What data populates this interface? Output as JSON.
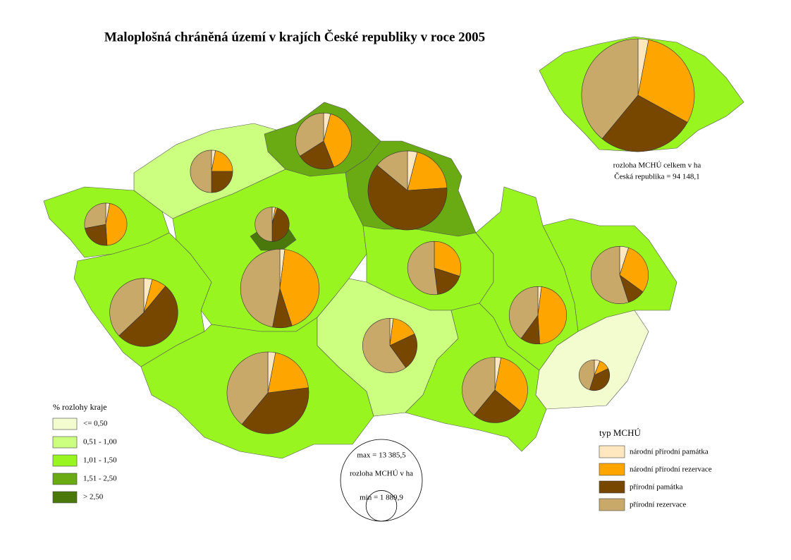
{
  "title": "Maloplošná chráněná území v krajích České republiky v roce 2005",
  "choropleth_legend": {
    "title": "% rozlohy kraje",
    "classes": [
      {
        "label": "<=  0,50",
        "color": "#f2fccf"
      },
      {
        "label": "0,51 - 1,00",
        "color": "#ccff80"
      },
      {
        "label": "1,01 - 1,50",
        "color": "#99f520"
      },
      {
        "label": "1,51 - 2,50",
        "color": "#6aaa12"
      },
      {
        "label": "> 2,50",
        "color": "#4a780a"
      }
    ]
  },
  "type_legend": {
    "title": "typ MCHÚ",
    "types": [
      {
        "name": "národní přírodní památka",
        "color": "#ffe8c0"
      },
      {
        "name": "národní přírodní rezervace",
        "color": "#ffa500"
      },
      {
        "name": "přírodní památka",
        "color": "#774700"
      },
      {
        "name": "přírodní rezervace",
        "color": "#c8a96a"
      }
    ]
  },
  "size_legend": {
    "label": "rozloha MCHÚ v ha",
    "max": {
      "value": 13385.5,
      "label": "max = 13 385,5"
    },
    "min": {
      "value": 1889.9,
      "label": "min = 1 889,9"
    }
  },
  "cr_pie": {
    "label": "rozloha MCHÚ celkem v ha",
    "total": {
      "value": 94148.1,
      "label": "Česká republika = 94 148,1"
    },
    "values": [
      2824.4,
      28244.4,
      26361.5,
      36717.8
    ]
  },
  "region_pies": [
    {
      "values": [
        108,
        1656,
        828,
        1008
      ]
    },
    {
      "values": [
        108,
        792,
        900,
        1800
      ]
    },
    {
      "values": [
        252,
        2520,
        1386,
        2142
      ]
    },
    {
      "values": [
        500,
        2500,
        7750,
        1750
      ]
    },
    {
      "values": [
        70,
        47,
        1058,
        1175
      ]
    },
    {
      "values": [
        248,
        5332,
        992,
        5828
      ]
    },
    {
      "values": [
        372,
        651,
        4836,
        3441
      ]
    },
    {
      "values": [
        402,
        2677,
        5086,
        5220.5
      ]
    },
    {
      "values": [
        0,
        1710,
        1026,
        2964
      ]
    },
    {
      "values": [
        119,
        952,
        1309,
        3570
      ]
    },
    {
      "values": [
        258,
        2838,
        2150,
        3354
      ]
    },
    {
      "values": [
        132,
        3102,
        726,
        2640
      ]
    },
    {
      "values": [
        330,
        1980,
        660,
        3630
      ]
    },
    {
      "values": [
        113,
        227,
        699,
        850.9
      ]
    }
  ]
}
